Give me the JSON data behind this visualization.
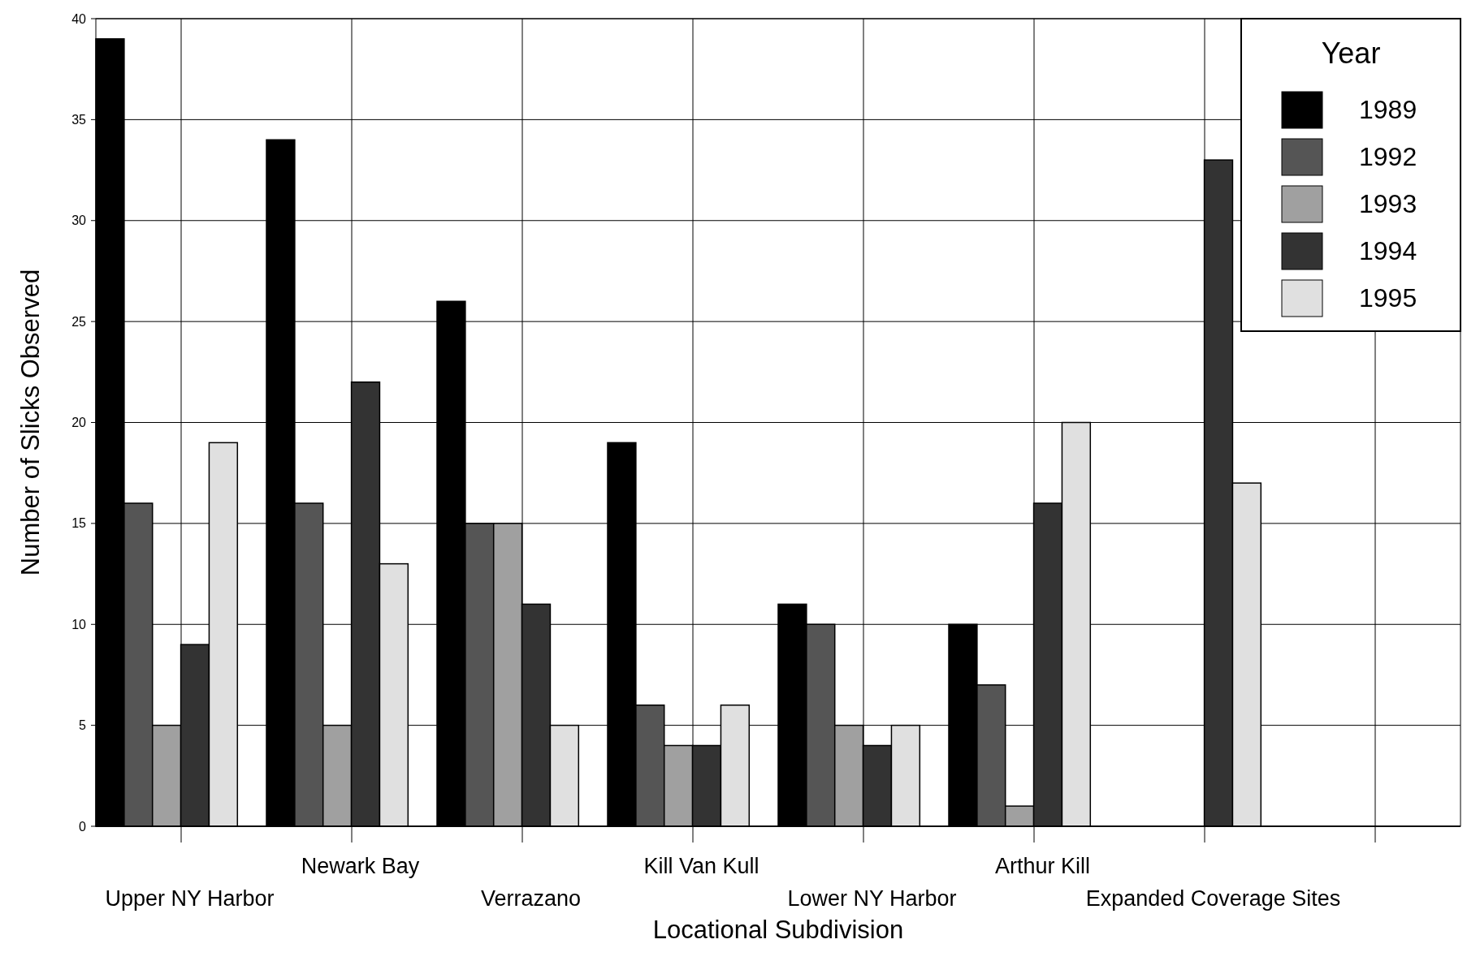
{
  "chart_data": {
    "type": "bar",
    "xlabel": "Locational Subdivision",
    "ylabel": "Number of Slicks Observed",
    "legend_title": "Year",
    "categories": [
      "Upper NY Harbor",
      "Newark Bay",
      "Verrazano",
      "Kill Van Kull",
      "Lower NY Harbor",
      "Arthur Kill",
      "Expanded Coverage Sites"
    ],
    "series": [
      {
        "name": "1989",
        "color": "#000000",
        "values": [
          39,
          34,
          26,
          19,
          11,
          10,
          null
        ]
      },
      {
        "name": "1992",
        "color": "#555555",
        "values": [
          16,
          16,
          15,
          6,
          10,
          7,
          null
        ]
      },
      {
        "name": "1993",
        "color": "#a0a0a0",
        "values": [
          5,
          5,
          15,
          4,
          5,
          1,
          null
        ]
      },
      {
        "name": "1994",
        "color": "#333333",
        "values": [
          9,
          22,
          11,
          4,
          4,
          16,
          33
        ]
      },
      {
        "name": "1995",
        "color": "#e0e0e0",
        "values": [
          19,
          13,
          5,
          6,
          5,
          20,
          17
        ]
      }
    ],
    "ylim": [
      0,
      40
    ],
    "yticks": [
      0,
      5,
      10,
      15,
      20,
      25,
      30,
      35,
      40
    ],
    "grid": true,
    "legend": "top right"
  }
}
